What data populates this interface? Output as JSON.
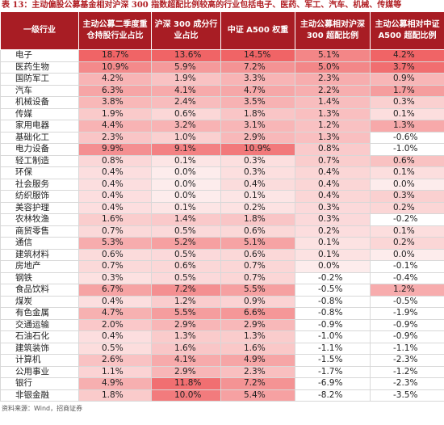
{
  "title": "表 13：主动偏股公募基金相对沪深 300 指数超配比例较高的行业包括电子、医药、军工、汽车、机械、传媒等",
  "table": {
    "header": [
      "一级行业",
      "主动公募二季度重仓持股行业占比",
      "沪深 300 成分行业占比",
      "中证 A500 权重",
      "主动公募相对沪深 300 超配比例",
      "主动公募相对中证 A500 超配比例"
    ],
    "rows": [
      [
        "电子",
        "18.7%",
        "13.6%",
        "14.5%",
        "5.1%",
        "4.2%"
      ],
      [
        "医药生物",
        "10.9%",
        "5.9%",
        "7.2%",
        "5.0%",
        "3.7%"
      ],
      [
        "国防军工",
        "4.2%",
        "1.9%",
        "3.3%",
        "2.3%",
        "0.9%"
      ],
      [
        "汽车",
        "6.3%",
        "4.1%",
        "4.7%",
        "2.2%",
        "1.7%"
      ],
      [
        "机械设备",
        "3.8%",
        "2.4%",
        "3.5%",
        "1.4%",
        "0.3%"
      ],
      [
        "传媒",
        "1.9%",
        "0.6%",
        "1.8%",
        "1.3%",
        "0.1%"
      ],
      [
        "家用电器",
        "4.4%",
        "3.2%",
        "3.1%",
        "1.2%",
        "1.3%"
      ],
      [
        "基础化工",
        "2.3%",
        "1.0%",
        "2.9%",
        "1.3%",
        "-0.6%"
      ],
      [
        "电力设备",
        "9.9%",
        "9.1%",
        "10.9%",
        "0.8%",
        "-1.0%"
      ],
      [
        "轻工制造",
        "0.8%",
        "0.1%",
        "0.3%",
        "0.7%",
        "0.6%"
      ],
      [
        "环保",
        "0.4%",
        "0.0%",
        "0.3%",
        "0.4%",
        "0.1%"
      ],
      [
        "社会服务",
        "0.4%",
        "0.0%",
        "0.4%",
        "0.4%",
        "0.0%"
      ],
      [
        "纺织服饰",
        "0.4%",
        "0.0%",
        "0.1%",
        "0.4%",
        "0.3%"
      ],
      [
        "美容护理",
        "0.4%",
        "0.1%",
        "0.2%",
        "0.3%",
        "0.2%"
      ],
      [
        "农林牧渔",
        "1.6%",
        "1.4%",
        "1.8%",
        "0.3%",
        "-0.2%"
      ],
      [
        "商贸零售",
        "0.7%",
        "0.5%",
        "0.6%",
        "0.2%",
        "0.1%"
      ],
      [
        "通信",
        "5.3%",
        "5.2%",
        "5.1%",
        "0.1%",
        "0.2%"
      ],
      [
        "建筑材料",
        "0.6%",
        "0.5%",
        "0.6%",
        "0.1%",
        "0.0%"
      ],
      [
        "房地产",
        "0.7%",
        "0.6%",
        "0.7%",
        "0.0%",
        "-0.1%"
      ],
      [
        "钢铁",
        "0.3%",
        "0.5%",
        "0.7%",
        "-0.2%",
        "-0.4%"
      ],
      [
        "食品饮料",
        "6.7%",
        "7.2%",
        "5.5%",
        "-0.5%",
        "1.2%"
      ],
      [
        "煤炭",
        "0.4%",
        "1.2%",
        "0.9%",
        "-0.8%",
        "-0.5%"
      ],
      [
        "有色金属",
        "4.7%",
        "5.5%",
        "6.6%",
        "-0.8%",
        "-1.9%"
      ],
      [
        "交通运输",
        "2.0%",
        "2.9%",
        "2.9%",
        "-0.9%",
        "-0.9%"
      ],
      [
        "石油石化",
        "0.4%",
        "1.3%",
        "1.3%",
        "-1.0%",
        "-0.9%"
      ],
      [
        "建筑装饰",
        "0.5%",
        "1.6%",
        "1.6%",
        "-1.1%",
        "-1.1%"
      ],
      [
        "计算机",
        "2.6%",
        "4.1%",
        "4.9%",
        "-1.5%",
        "-2.3%"
      ],
      [
        "公用事业",
        "1.1%",
        "2.9%",
        "2.3%",
        "-1.7%",
        "-1.2%"
      ],
      [
        "银行",
        "4.9%",
        "11.8%",
        "7.2%",
        "-6.9%",
        "-2.3%"
      ],
      [
        "非银金融",
        "1.8%",
        "10.0%",
        "5.4%",
        "-8.2%",
        "-3.5%"
      ]
    ]
  },
  "source": "资料来源：Wind，招商证券"
}
